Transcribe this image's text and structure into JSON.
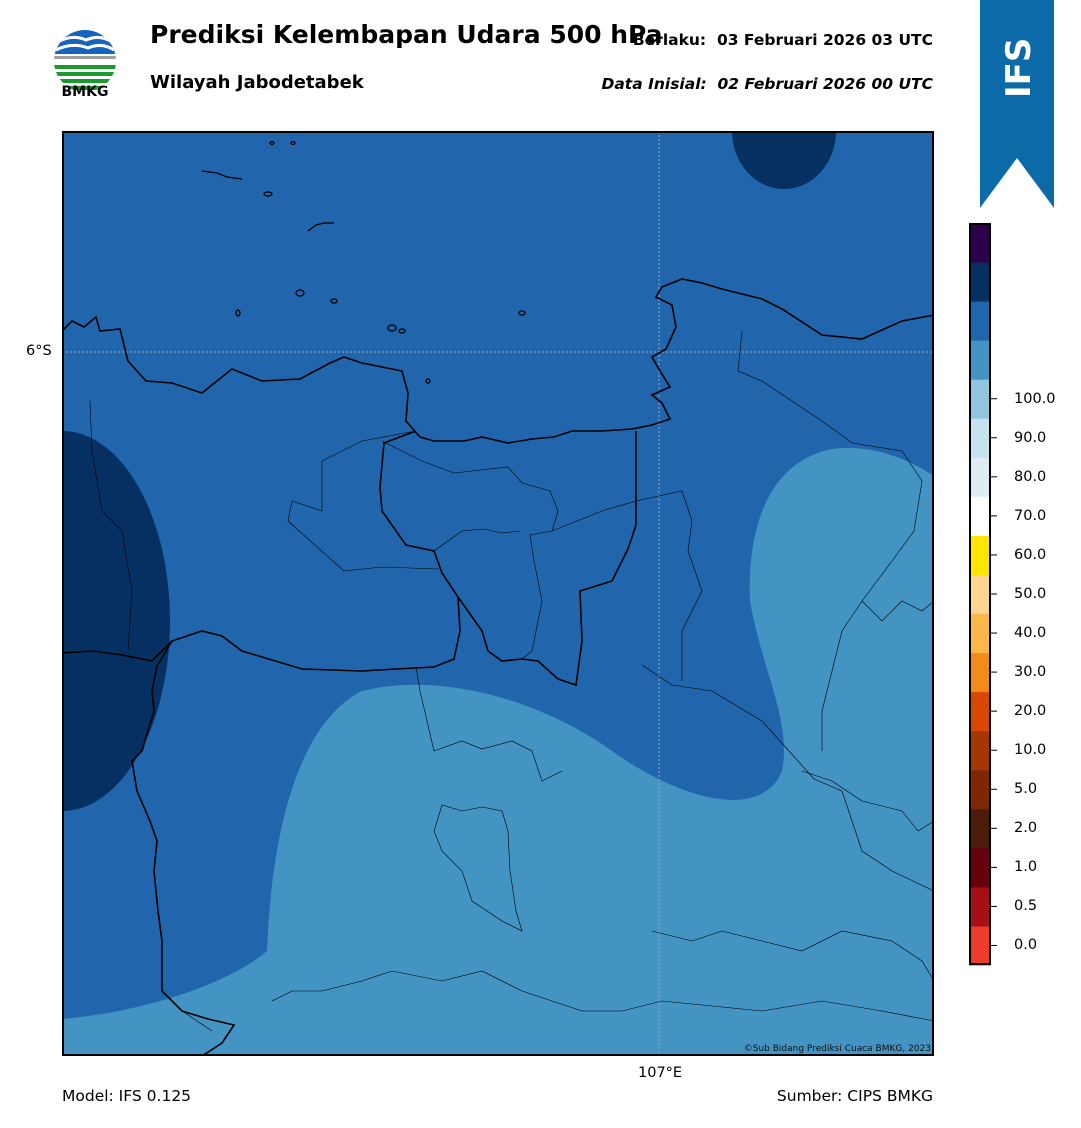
{
  "header": {
    "logo_text": "BMKG",
    "title": "Prediksi Kelembapan Udara 500 hPa",
    "subtitle": "Wilayah Jabodetabek",
    "valid_label": "Berlaku:",
    "valid_value": "03 Februari 2026 03 UTC",
    "init_label": "Data Inisial:",
    "init_value": "02 Februari 2026 00 UTC"
  },
  "ribbon": {
    "text": "IFS",
    "color": "#0d6aa8"
  },
  "map": {
    "lat_label": "6°S",
    "lon_label": "107°E",
    "copyright": "©Sub Bidang Prediksi Cuaca BMKG, 2023",
    "field_colors": {
      "band_80_90": "#2166ac",
      "band_70_80": "#4393c3",
      "band_90_100": "#053061"
    }
  },
  "footer": {
    "model": "Model: IFS 0.125",
    "source": "Sumber: CIPS BMKG"
  },
  "colorbar": {
    "ticks": [
      "0.0",
      "0.5",
      "1.0",
      "2.0",
      "5.0",
      "10.0",
      "20.0",
      "30.0",
      "40.0",
      "50.0",
      "60.0",
      "70.0",
      "80.0",
      "90.0",
      "100.0"
    ],
    "colors": [
      "#ef3b2c",
      "#a50f15",
      "#67000d",
      "#4a1d0a",
      "#7f2704",
      "#a63603",
      "#d94801",
      "#f28b1c",
      "#fdb64a",
      "#fdd590",
      "#ffe600",
      "#ffffff",
      "#e0ecf4",
      "#c6e3ef",
      "#92c5de",
      "#4393c3",
      "#2166ac",
      "#053061",
      "#2d004b"
    ]
  }
}
